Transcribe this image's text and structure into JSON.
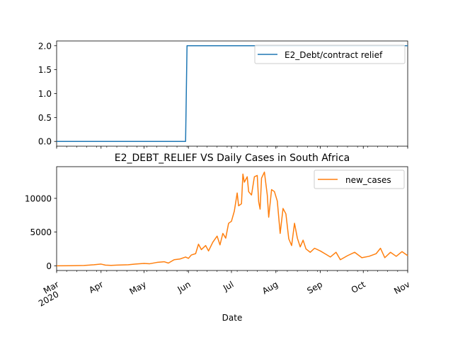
{
  "title": "E2_DEBT_RELIEF VS Daily Cases in South Africa",
  "xlabel": "Date",
  "x_ticks": [
    {
      "label": "Mar",
      "year": "2020",
      "date": "2020-03-01"
    },
    {
      "label": "Apr",
      "date": "2020-04-01"
    },
    {
      "label": "May",
      "date": "2020-05-01"
    },
    {
      "label": "Jun",
      "date": "2020-06-01"
    },
    {
      "label": "Jul",
      "date": "2020-07-01"
    },
    {
      "label": "Aug",
      "date": "2020-08-01"
    },
    {
      "label": "Sep",
      "date": "2020-09-01"
    },
    {
      "label": "Oct",
      "date": "2020-10-01"
    },
    {
      "label": "Nov",
      "date": "2020-11-01"
    }
  ],
  "chart_data": [
    {
      "type": "line",
      "xrange": [
        "2020-03-01",
        "2020-11-01"
      ],
      "ylim": [
        -0.1,
        2.1
      ],
      "yticks": [
        "0.0",
        "0.5",
        "1.0",
        "1.5",
        "2.0"
      ],
      "legend_position": "top-right",
      "grid": false,
      "series": [
        {
          "name": "E2_Debt/contract relief",
          "color": "#1f77b4",
          "points": [
            [
              "2020-03-01",
              0
            ],
            [
              "2020-05-30",
              0
            ],
            [
              "2020-05-31",
              2
            ],
            [
              "2020-11-01",
              2
            ]
          ]
        }
      ]
    },
    {
      "type": "line",
      "xrange": [
        "2020-03-01",
        "2020-11-01"
      ],
      "ylim": [
        -700,
        14700
      ],
      "yticks": [
        "0",
        "5000",
        "10000"
      ],
      "legend_position": "top-right",
      "grid": false,
      "series": [
        {
          "name": "new_cases",
          "color": "#ff7f0e",
          "points": [
            [
              "2020-03-01",
              0
            ],
            [
              "2020-03-10",
              3
            ],
            [
              "2020-03-20",
              50
            ],
            [
              "2020-03-27",
              150
            ],
            [
              "2020-04-01",
              250
            ],
            [
              "2020-04-04",
              100
            ],
            [
              "2020-04-08",
              60
            ],
            [
              "2020-04-12",
              100
            ],
            [
              "2020-04-16",
              130
            ],
            [
              "2020-04-20",
              150
            ],
            [
              "2020-04-25",
              250
            ],
            [
              "2020-05-01",
              350
            ],
            [
              "2020-05-05",
              300
            ],
            [
              "2020-05-10",
              500
            ],
            [
              "2020-05-15",
              600
            ],
            [
              "2020-05-18",
              400
            ],
            [
              "2020-05-22",
              900
            ],
            [
              "2020-05-26",
              1000
            ],
            [
              "2020-05-30",
              1300
            ],
            [
              "2020-06-01",
              1100
            ],
            [
              "2020-06-03",
              1600
            ],
            [
              "2020-06-06",
              1800
            ],
            [
              "2020-06-08",
              3200
            ],
            [
              "2020-06-10",
              2400
            ],
            [
              "2020-06-13",
              3000
            ],
            [
              "2020-06-15",
              2200
            ],
            [
              "2020-06-18",
              3500
            ],
            [
              "2020-06-21",
              4400
            ],
            [
              "2020-06-23",
              3100
            ],
            [
              "2020-06-25",
              4800
            ],
            [
              "2020-06-27",
              4100
            ],
            [
              "2020-06-29",
              6300
            ],
            [
              "2020-07-01",
              6600
            ],
            [
              "2020-07-03",
              8100
            ],
            [
              "2020-07-05",
              10800
            ],
            [
              "2020-07-06",
              8900
            ],
            [
              "2020-07-08",
              9200
            ],
            [
              "2020-07-09",
              13600
            ],
            [
              "2020-07-10",
              12400
            ],
            [
              "2020-07-12",
              13200
            ],
            [
              "2020-07-13",
              11000
            ],
            [
              "2020-07-15",
              10500
            ],
            [
              "2020-07-17",
              13200
            ],
            [
              "2020-07-19",
              13400
            ],
            [
              "2020-07-20",
              9500
            ],
            [
              "2020-07-21",
              8400
            ],
            [
              "2020-07-22",
              13000
            ],
            [
              "2020-07-24",
              13900
            ],
            [
              "2020-07-26",
              10500
            ],
            [
              "2020-07-27",
              7200
            ],
            [
              "2020-07-29",
              11300
            ],
            [
              "2020-07-31",
              11000
            ],
            [
              "2020-08-02",
              9600
            ],
            [
              "2020-08-04",
              4800
            ],
            [
              "2020-08-06",
              8500
            ],
            [
              "2020-08-08",
              7700
            ],
            [
              "2020-08-10",
              4000
            ],
            [
              "2020-08-12",
              3000
            ],
            [
              "2020-08-14",
              6300
            ],
            [
              "2020-08-16",
              4100
            ],
            [
              "2020-08-18",
              2800
            ],
            [
              "2020-08-20",
              3800
            ],
            [
              "2020-08-22",
              2500
            ],
            [
              "2020-08-25",
              2000
            ],
            [
              "2020-08-28",
              2600
            ],
            [
              "2020-09-01",
              2200
            ],
            [
              "2020-09-05",
              1700
            ],
            [
              "2020-09-08",
              1300
            ],
            [
              "2020-09-12",
              2000
            ],
            [
              "2020-09-15",
              900
            ],
            [
              "2020-09-20",
              1500
            ],
            [
              "2020-09-25",
              2000
            ],
            [
              "2020-09-30",
              1200
            ],
            [
              "2020-10-05",
              1400
            ],
            [
              "2020-10-10",
              1800
            ],
            [
              "2020-10-13",
              2600
            ],
            [
              "2020-10-16",
              1200
            ],
            [
              "2020-10-20",
              2000
            ],
            [
              "2020-10-24",
              1400
            ],
            [
              "2020-10-28",
              2100
            ],
            [
              "2020-11-01",
              1500
            ]
          ]
        }
      ]
    }
  ]
}
